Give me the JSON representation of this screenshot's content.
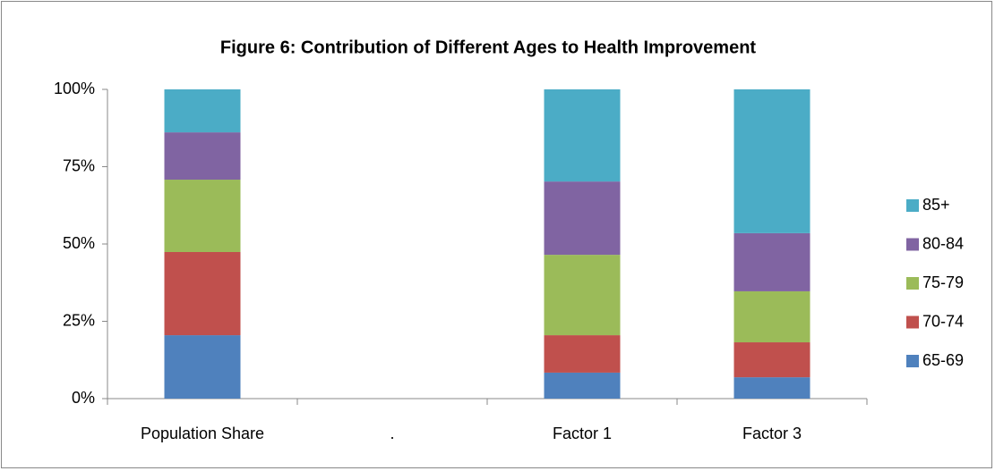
{
  "chart_data": {
    "type": "stacked_bar",
    "title": "Figure 6: Contribution of Different Ages to Health Improvement",
    "categories": [
      "Population Share",
      ".",
      "Factor 1",
      "Factor 3"
    ],
    "series": [
      {
        "name": "65-69",
        "color": "#4f81bd",
        "values": [
          20.5,
          null,
          8.4,
          6.9
        ]
      },
      {
        "name": "70-74",
        "color": "#c0504d",
        "values": [
          26.9,
          null,
          12.1,
          11.3
        ]
      },
      {
        "name": "75-79",
        "color": "#9bbb59",
        "values": [
          23.4,
          null,
          26.0,
          16.5
        ]
      },
      {
        "name": "80-84",
        "color": "#8064a2",
        "values": [
          15.3,
          null,
          23.7,
          18.8
        ]
      },
      {
        "name": "85+",
        "color": "#4bacc6",
        "values": [
          13.9,
          null,
          29.8,
          46.5
        ]
      }
    ],
    "ylim": [
      0,
      100
    ],
    "yticks": [
      {
        "value": 0,
        "label": "0%"
      },
      {
        "value": 25,
        "label": "25%"
      },
      {
        "value": 50,
        "label": "50%"
      },
      {
        "value": 75,
        "label": "75%"
      },
      {
        "value": 100,
        "label": "100%"
      }
    ],
    "grid": false,
    "legend": "right"
  }
}
